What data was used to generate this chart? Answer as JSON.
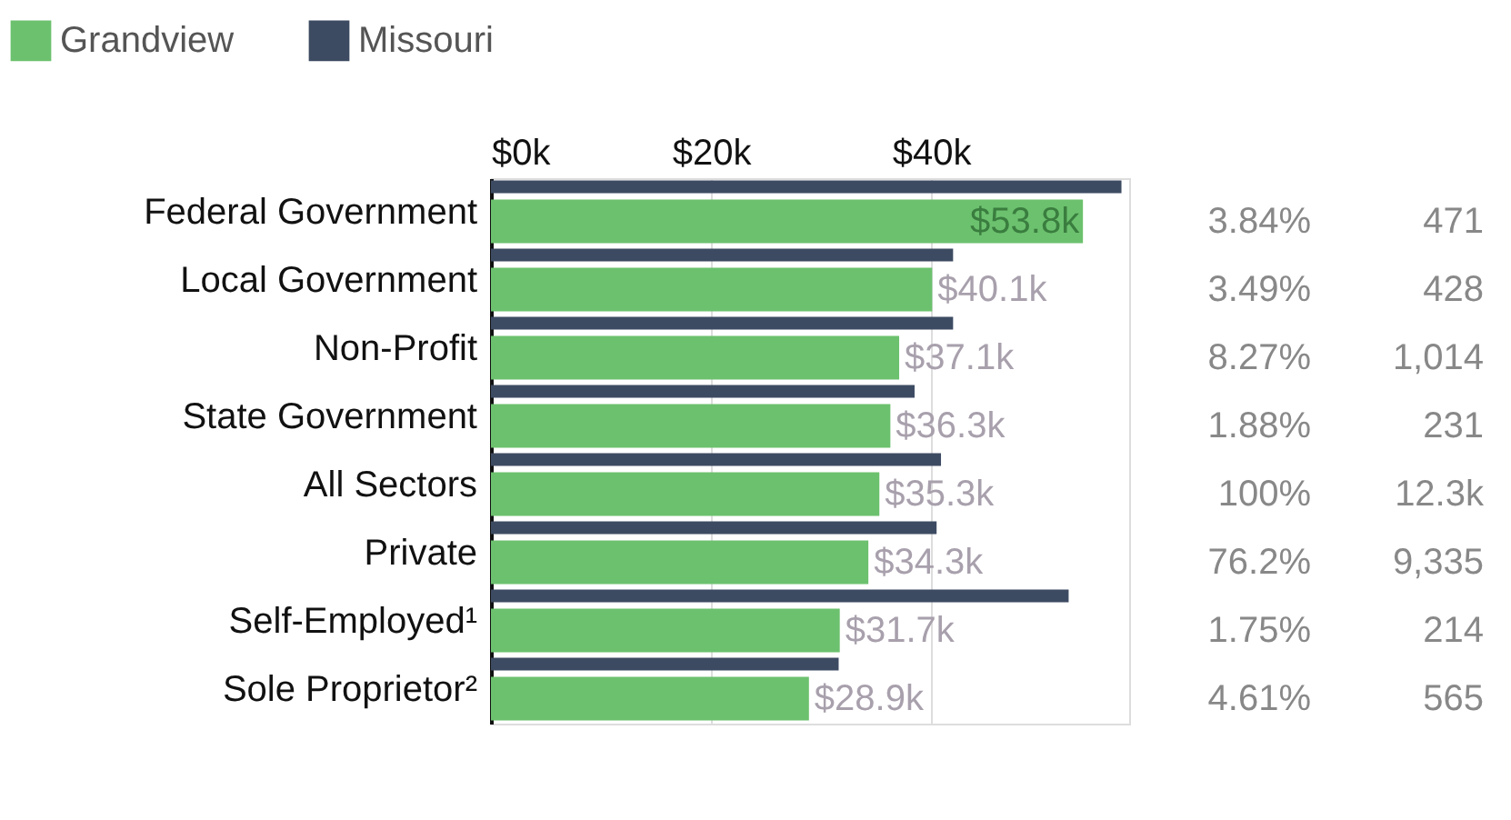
{
  "chart_data": {
    "type": "bar",
    "orientation": "horizontal",
    "categories": [
      "Federal Government",
      "Local Government",
      "Non-Profit",
      "State Government",
      "All Sectors",
      "Private",
      "Self-Employed¹",
      "Sole Proprietor²"
    ],
    "series": [
      {
        "name": "Grandview",
        "color": "#6cc16e",
        "values": [
          53.8,
          40.1,
          37.1,
          36.3,
          35.3,
          34.3,
          31.7,
          28.9
        ],
        "value_labels": [
          "$53.8k",
          "$40.1k",
          "$37.1k",
          "$36.3k",
          "$35.3k",
          "$34.3k",
          "$31.7k",
          "$28.9k"
        ]
      },
      {
        "name": "Missouri",
        "color": "#3d4b62",
        "values": [
          57.3,
          42.0,
          42.0,
          38.5,
          40.9,
          40.5,
          52.5,
          31.6
        ]
      }
    ],
    "xlim": [
      0,
      58
    ],
    "xticks": [
      {
        "value": 0,
        "label": "$0k"
      },
      {
        "value": 20,
        "label": "$20k"
      },
      {
        "value": 40,
        "label": "$40k"
      }
    ],
    "grid": "x",
    "legend": "top left",
    "annotations": [
      "3.84%",
      "3.49%",
      "8.27%",
      "1.88%",
      "100%",
      "76.2%",
      "1.75%",
      "4.61%",
      "471",
      "428",
      "1,014",
      "231",
      "12.3k",
      "9,335",
      "214",
      "565"
    ]
  }
}
